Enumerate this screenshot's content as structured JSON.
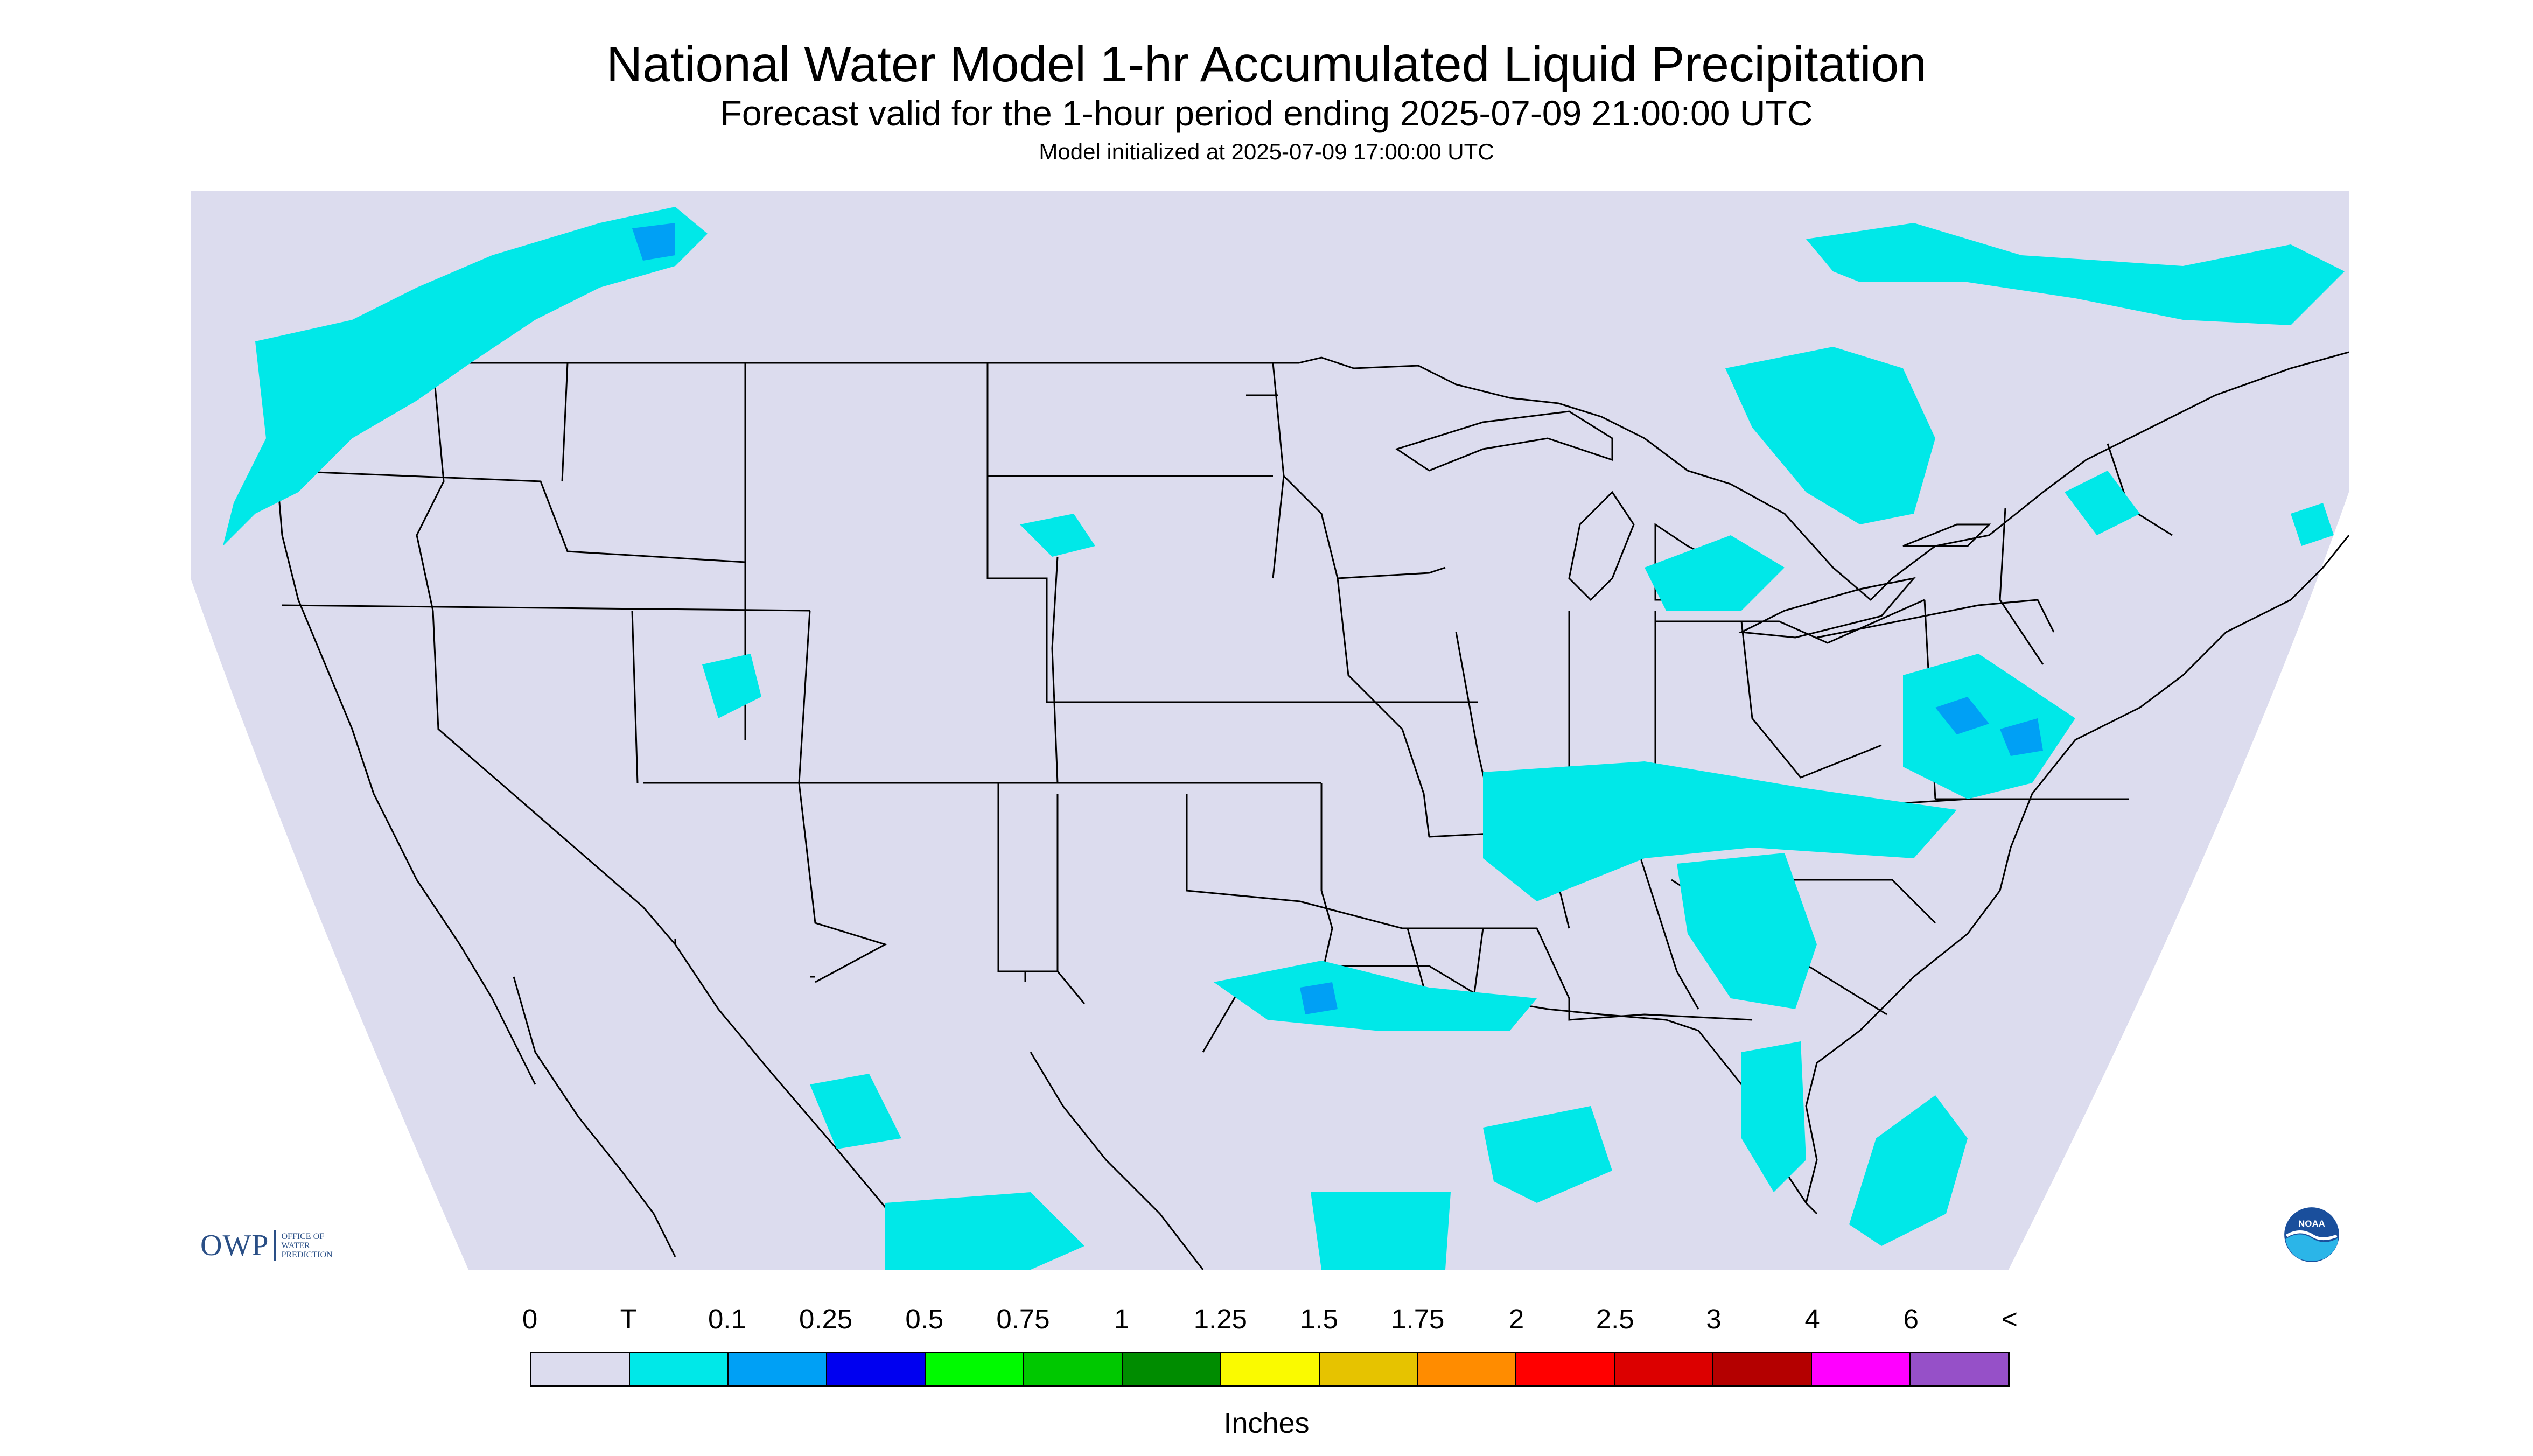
{
  "title": "National Water Model 1-hr Accumulated Liquid Precipitation",
  "subtitle": "Forecast valid for the 1-hour period ending 2025-07-09 21:00:00 UTC",
  "init_line": "Model initialized at 2025-07-09 17:00:00 UTC",
  "legend": {
    "units": "Inches",
    "labels": [
      "0",
      "T",
      "0.1",
      "0.25",
      "0.5",
      "0.75",
      "1",
      "1.25",
      "1.5",
      "1.75",
      "2",
      "2.5",
      "3",
      "4",
      "6",
      "<"
    ],
    "colors": [
      "#dcdcee",
      "#00e8e8",
      "#00a0f5",
      "#0000f0",
      "#00fa00",
      "#00c800",
      "#008c00",
      "#fafa00",
      "#e6c300",
      "#ff8c00",
      "#ff0000",
      "#dc0000",
      "#b40000",
      "#ff00ff",
      "#9650c8"
    ]
  },
  "logos": {
    "owp_mark": "OWP",
    "owp_text": [
      "OFFICE OF",
      "WATER",
      "PREDICTION"
    ],
    "noaa": "NOAA"
  },
  "map": {
    "background_color": "#dcdcee",
    "outside_color": "#ffffff",
    "boundary_color": "#000000",
    "precip_colors": [
      "#00e8e8",
      "#00a0f5",
      "#0000f0",
      "#00fa00",
      "#fafa00"
    ]
  }
}
